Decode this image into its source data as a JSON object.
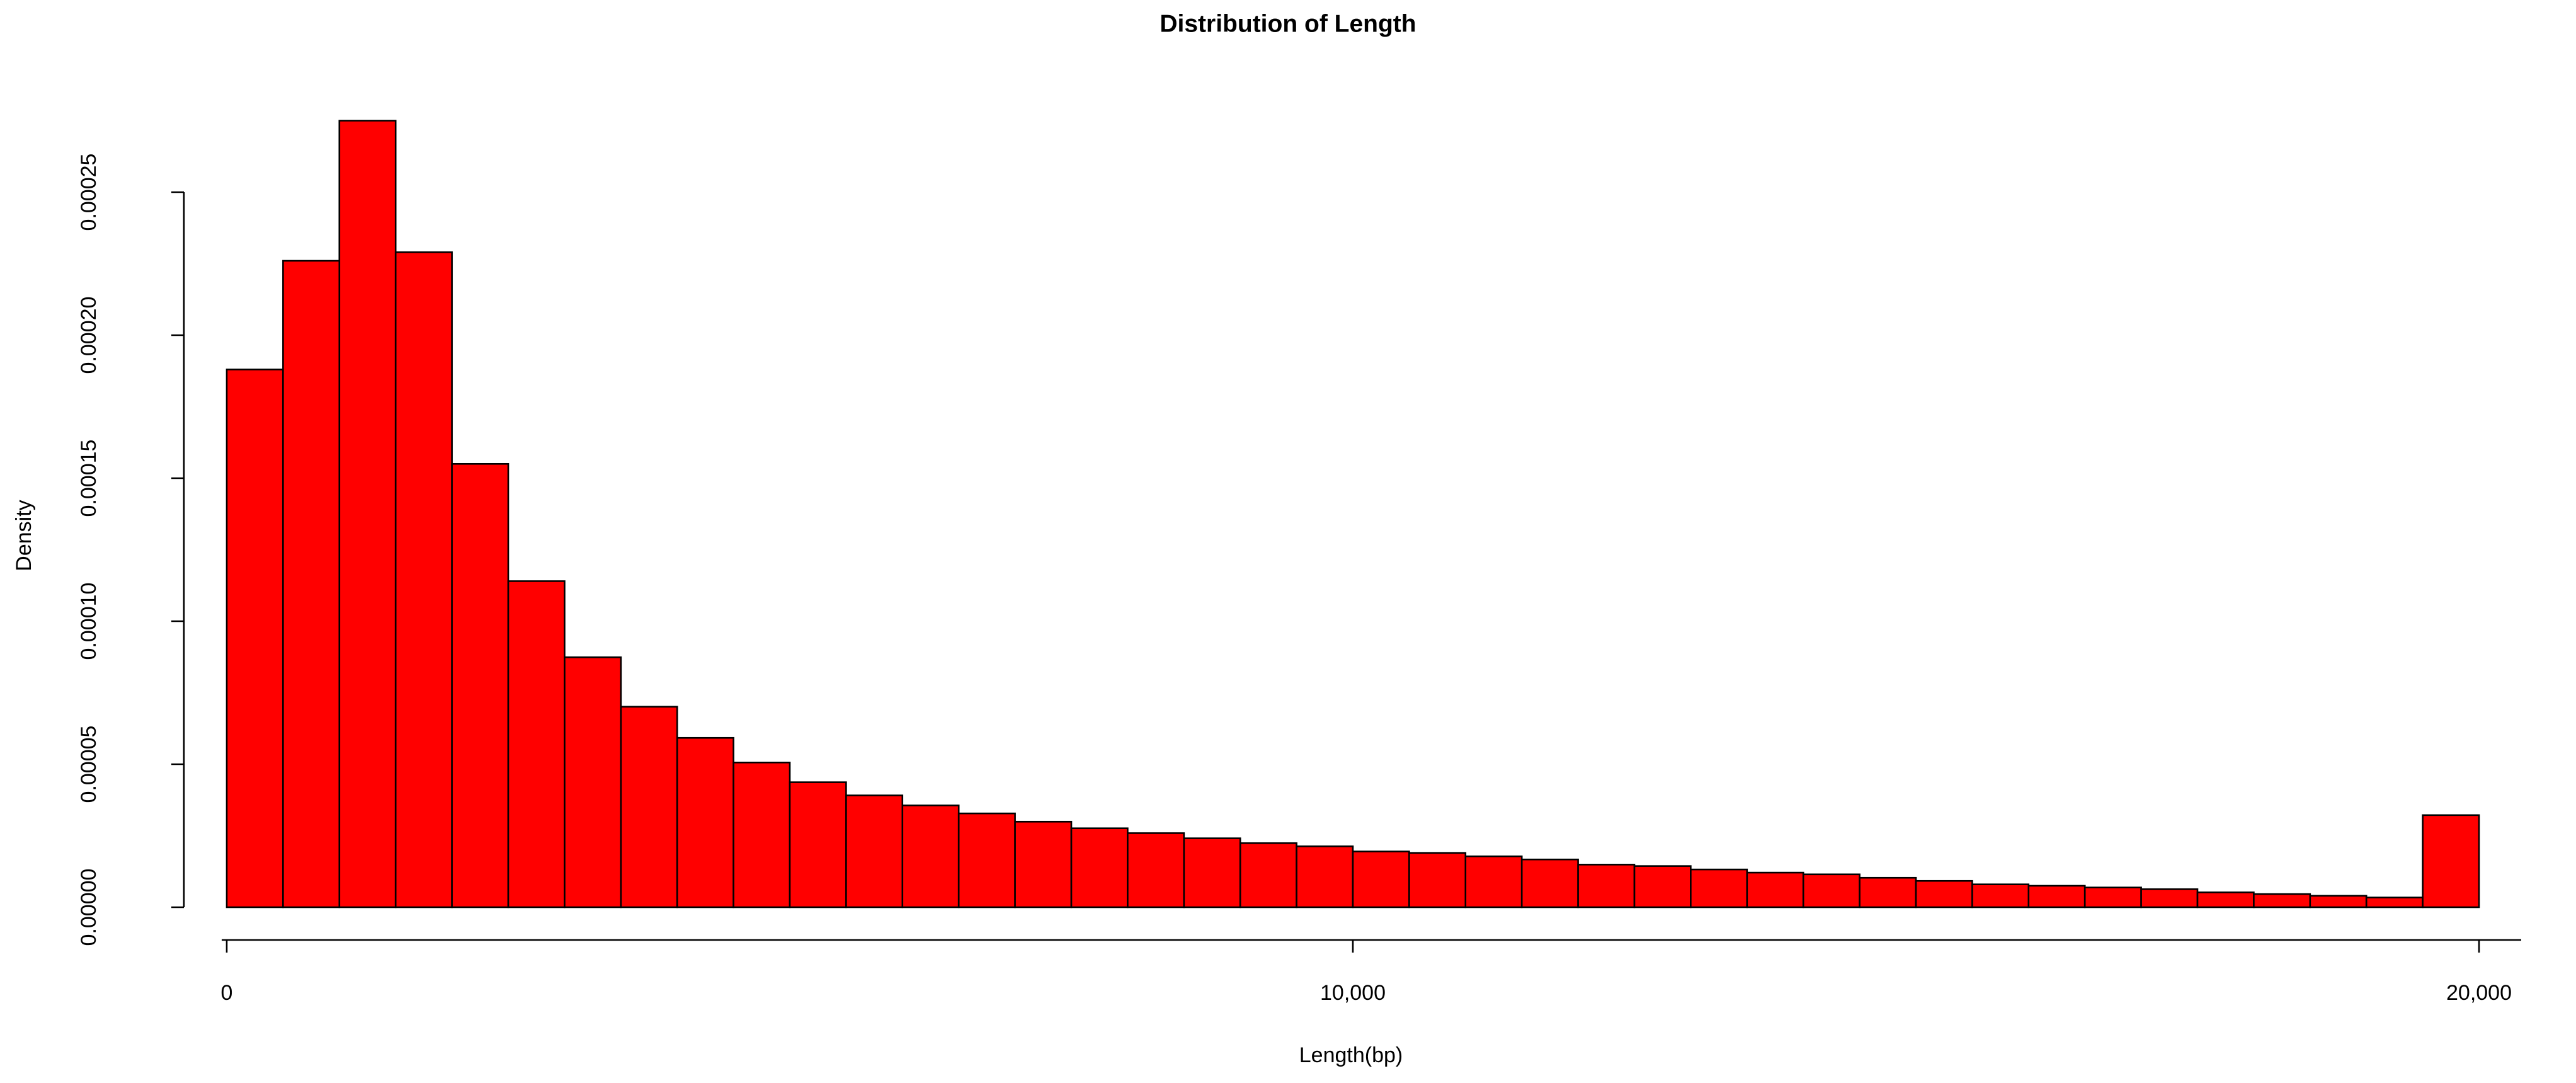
{
  "chart_data": {
    "type": "histogram",
    "title": "Distribution of Length",
    "xlabel": "Length(bp)",
    "ylabel": "Density",
    "bins": [
      0,
      500,
      1000,
      1500,
      2000,
      2500,
      3000,
      3500,
      4000,
      4500,
      5000,
      5500,
      6000,
      6500,
      7000,
      7500,
      8000,
      8500,
      9000,
      9500,
      10000,
      10500,
      11000,
      11500,
      12000,
      12500,
      13000,
      13500,
      14000,
      14500,
      15000,
      15500,
      16000,
      16500,
      17000,
      17500,
      18000,
      18500,
      19000,
      19500,
      20000
    ],
    "values": [
      0.000188,
      0.000226,
      0.000275,
      0.000229,
      0.000155,
      0.000114,
      8.74e-05,
      7.01e-05,
      5.92e-05,
      5.06e-05,
      4.37e-05,
      3.91e-05,
      3.56e-05,
      3.28e-05,
      2.99e-05,
      2.76e-05,
      2.59e-05,
      2.41e-05,
      2.24e-05,
      2.13e-05,
      1.95e-05,
      1.9e-05,
      1.78e-05,
      1.67e-05,
      1.49e-05,
      1.44e-05,
      1.32e-05,
      1.21e-05,
      1.15e-05,
      1.03e-05,
      9.2e-06,
      8e-06,
      7.5e-06,
      6.9e-06,
      6.3e-06,
      5.2e-06,
      4.6e-06,
      4e-06,
      3.4e-06,
      3.22e-05
    ],
    "color": "#ff0000",
    "xlim": [
      0,
      20000
    ],
    "xticks": [
      0,
      {
        "value": 10000,
        "label": "10,000"
      },
      {
        "value": 20000,
        "label": "20,000"
      }
    ],
    "ylim": [
      0,
      0.00025
    ],
    "yticks": [
      {
        "value": 0,
        "label": "0.00000"
      },
      {
        "value": 5e-05,
        "label": "0.00005"
      },
      {
        "value": 0.0001,
        "label": "0.00010"
      },
      {
        "value": 0.00015,
        "label": "0.00015"
      },
      {
        "value": 0.0002,
        "label": "0.00020"
      },
      {
        "value": 0.00025,
        "label": "0.00025"
      }
    ]
  }
}
